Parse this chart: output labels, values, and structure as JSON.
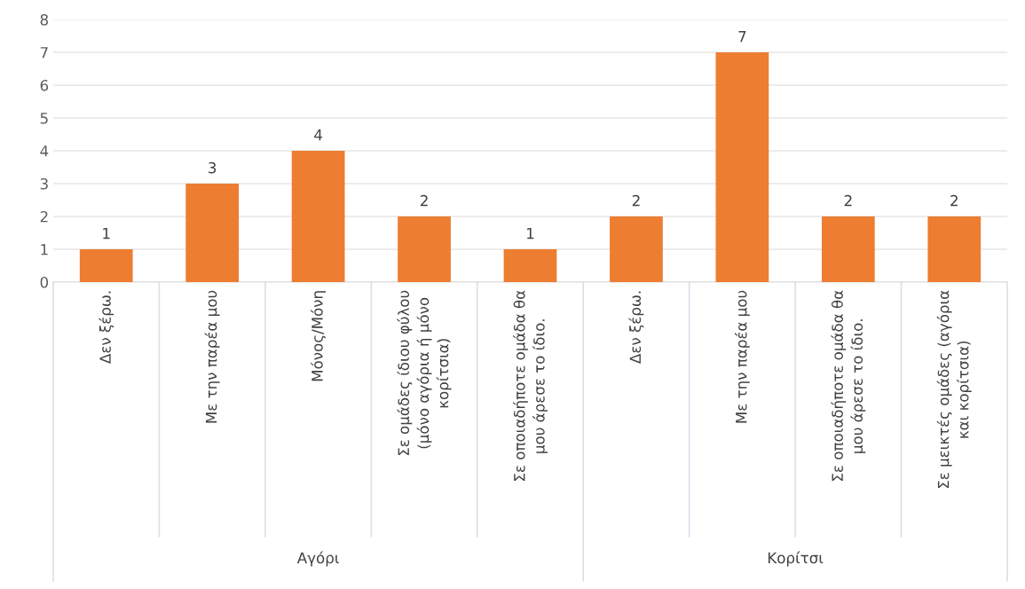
{
  "chart_data": {
    "type": "bar",
    "categories": [
      "Δεν ξέρω.",
      "Με την παρέα μου",
      "Μόνος/Μόνη",
      "Σε ομάδες ίδιου φύλου (μόνο αγόρια ή μόνο κορίτσια)",
      "Σε οποιαδήποτε ομάδα θα μου άρεσε το ίδιο.",
      "Δεν ξέρω.",
      "Με την παρέα μου",
      "Σε οποιαδήποτε ομάδα θα μου άρεσε το ίδιο.",
      "Σε μεικτές ομάδες (αγόρια και κορίτσια)"
    ],
    "values": [
      1,
      3,
      4,
      2,
      1,
      2,
      7,
      2,
      2
    ],
    "color": "#ed7d31",
    "ylim": [
      0,
      8
    ],
    "yticks": [
      0,
      1,
      2,
      3,
      4,
      5,
      6,
      7,
      8
    ],
    "grid": "y",
    "data_labels": true,
    "annotations": [
      "Αγόρι",
      "Κορίτσι"
    ]
  }
}
